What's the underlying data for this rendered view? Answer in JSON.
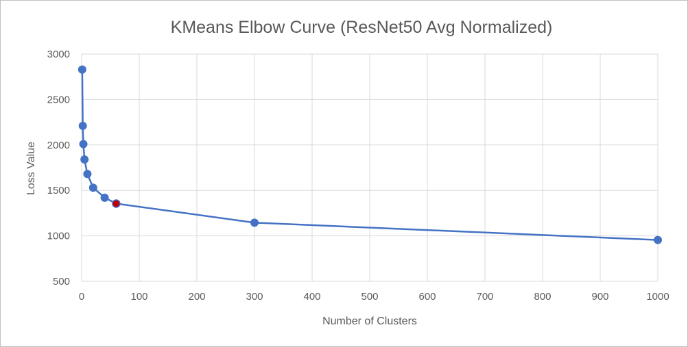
{
  "chart_data": {
    "type": "scatter",
    "title": "KMeans Elbow Curve (ResNet50 Avg Normalized)",
    "xlabel": "Number  of Clusters",
    "ylabel": "Loss Value",
    "xlim": [
      0,
      1000
    ],
    "ylim": [
      500,
      3000
    ],
    "xticks": [
      0,
      100,
      200,
      300,
      400,
      500,
      600,
      700,
      800,
      900,
      1000
    ],
    "yticks": [
      500,
      1000,
      1500,
      2000,
      2500,
      3000
    ],
    "grid": true,
    "legend": "none",
    "line_color": "#4472c4",
    "highlight_color": "#c00000",
    "series": [
      {
        "points": [
          {
            "x": 1,
            "y": 2830
          },
          {
            "x": 2,
            "y": 2210
          },
          {
            "x": 3,
            "y": 2010
          },
          {
            "x": 5,
            "y": 1840
          },
          {
            "x": 10,
            "y": 1680
          },
          {
            "x": 20,
            "y": 1530
          },
          {
            "x": 40,
            "y": 1420
          },
          {
            "x": 60,
            "y": 1355,
            "highlight": true
          },
          {
            "x": 300,
            "y": 1145
          },
          {
            "x": 1000,
            "y": 955
          }
        ]
      }
    ]
  }
}
